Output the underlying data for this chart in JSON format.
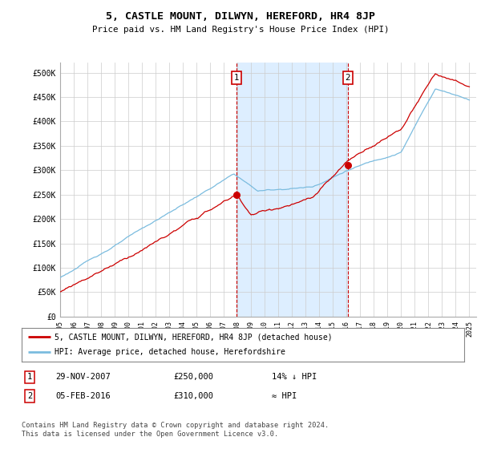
{
  "title": "5, CASTLE MOUNT, DILWYN, HEREFORD, HR4 8JP",
  "subtitle": "Price paid vs. HM Land Registry's House Price Index (HPI)",
  "ylim": [
    0,
    520000
  ],
  "yticks": [
    0,
    50000,
    100000,
    150000,
    200000,
    250000,
    300000,
    350000,
    400000,
    450000,
    500000
  ],
  "ytick_labels": [
    "£0",
    "£50K",
    "£100K",
    "£150K",
    "£200K",
    "£250K",
    "£300K",
    "£350K",
    "£400K",
    "£450K",
    "£500K"
  ],
  "xlim_start": 1995.0,
  "xlim_end": 2025.5,
  "sale1_date": 2007.92,
  "sale1_price": 250000,
  "sale2_date": 2016.09,
  "sale2_price": 310000,
  "hpi_color": "#7bbcdf",
  "price_color": "#cc0000",
  "shade_color": "#ddeeff",
  "vline_color": "#cc0000",
  "legend_label1": "5, CASTLE MOUNT, DILWYN, HEREFORD, HR4 8JP (detached house)",
  "legend_label2": "HPI: Average price, detached house, Herefordshire",
  "table_row1": [
    "1",
    "29-NOV-2007",
    "£250,000",
    "14% ↓ HPI"
  ],
  "table_row2": [
    "2",
    "05-FEB-2016",
    "£310,000",
    "≈ HPI"
  ],
  "footnote": "Contains HM Land Registry data © Crown copyright and database right 2024.\nThis data is licensed under the Open Government Licence v3.0.",
  "background_color": "#ffffff"
}
